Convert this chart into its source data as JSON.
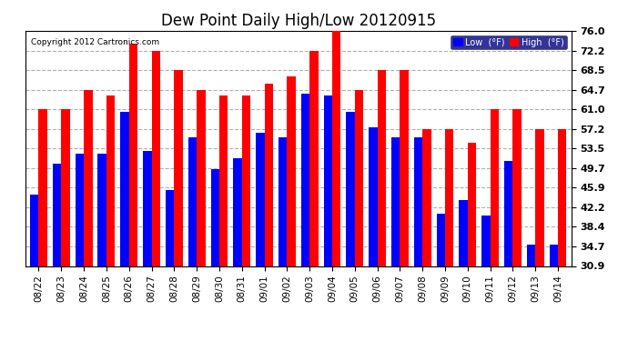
{
  "title": "Dew Point Daily High/Low 20120915",
  "copyright": "Copyright 2012 Cartronics.com",
  "categories": [
    "08/22",
    "08/23",
    "08/24",
    "08/25",
    "08/26",
    "08/27",
    "08/28",
    "08/29",
    "08/30",
    "08/31",
    "09/01",
    "09/02",
    "09/03",
    "09/04",
    "09/05",
    "09/06",
    "09/07",
    "09/08",
    "09/09",
    "09/10",
    "09/11",
    "09/12",
    "09/13",
    "09/14"
  ],
  "high_values": [
    61.0,
    61.0,
    64.7,
    63.5,
    73.5,
    72.2,
    68.5,
    64.7,
    63.5,
    63.5,
    65.8,
    67.2,
    72.2,
    76.0,
    64.7,
    68.5,
    68.5,
    57.2,
    57.2,
    54.5,
    61.0,
    61.0,
    57.2,
    57.2
  ],
  "low_values": [
    44.5,
    50.5,
    52.5,
    52.5,
    60.5,
    53.0,
    45.5,
    55.5,
    49.5,
    51.5,
    56.5,
    55.5,
    64.0,
    63.5,
    60.5,
    57.5,
    55.5,
    55.5,
    41.0,
    43.5,
    40.5,
    51.0,
    35.0,
    35.0
  ],
  "high_color": "#ff0000",
  "low_color": "#0000ff",
  "bg_color": "#ffffff",
  "plot_bg_color": "#ffffff",
  "grid_color": "#b0b0b0",
  "yticks": [
    30.9,
    34.7,
    38.4,
    42.2,
    45.9,
    49.7,
    53.5,
    57.2,
    61.0,
    64.7,
    68.5,
    72.2,
    76.0
  ],
  "ymin": 30.9,
  "ymax": 76.0,
  "bar_width": 0.38,
  "title_fontsize": 12,
  "legend_labels": [
    "Low  (°F)",
    "High  (°F)"
  ]
}
